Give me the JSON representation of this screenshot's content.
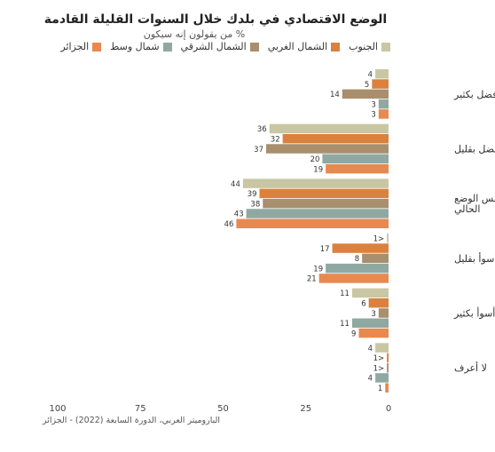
{
  "chart_data": {
    "type": "bar",
    "orientation": "horizontal",
    "title": "الوضع الاقتصادي في بلدك خلال السنوات القليلة القادمة",
    "subtitle": "% من يقولون إنه سيكون",
    "source": "الباروميتر العربي، الدورة السابعة (2022) - الجزائر",
    "xlim": [
      0,
      100
    ],
    "x_direction": "reversed",
    "x_ticks": [
      0,
      25,
      50,
      75,
      100
    ],
    "legend_position": "top",
    "categories": [
      "أفضل بكثير",
      "أفضل بقليل",
      "تقريبا بنفس الوضع الحالي",
      "أسوأ بقليل",
      "أسوأ بكثير",
      "لا أعرف"
    ],
    "series": [
      {
        "name": "الجنوب",
        "color": "#c9c7a3",
        "values": [
          4,
          36,
          44,
          0.5,
          11,
          4
        ],
        "labels": [
          "4",
          "36",
          "44",
          "1>",
          "11",
          "4"
        ]
      },
      {
        "name": "الشمال الغربي",
        "color": "#d9813d",
        "values": [
          5,
          32,
          39,
          17,
          6,
          0.5
        ],
        "labels": [
          "5",
          "32",
          "39",
          "17",
          "6",
          "1>"
        ]
      },
      {
        "name": "الشمال الشرقي",
        "color": "#a88f6d",
        "values": [
          14,
          37,
          38,
          8,
          3,
          0.5
        ],
        "labels": [
          "14",
          "37",
          "38",
          "8",
          "3",
          "1>"
        ]
      },
      {
        "name": "شمال وسط",
        "color": "#8fa9a2",
        "values": [
          3,
          20,
          43,
          19,
          11,
          4
        ],
        "labels": [
          "3",
          "20",
          "43",
          "19",
          "11",
          "4"
        ]
      },
      {
        "name": "الجزائر",
        "color": "#e8894f",
        "values": [
          3,
          19,
          46,
          21,
          9,
          1
        ],
        "labels": [
          "3",
          "19",
          "46",
          "21",
          "9",
          "1"
        ]
      }
    ]
  }
}
